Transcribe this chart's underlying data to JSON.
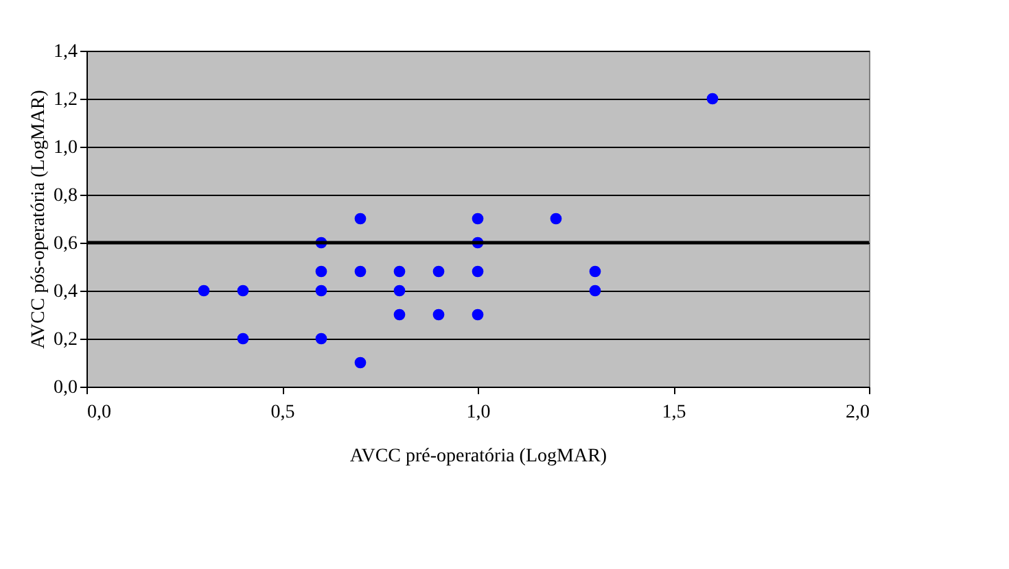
{
  "chart_data": {
    "type": "scatter",
    "xlabel": "AVCC pré-operatória (LogMAR)",
    "ylabel": "AVCC pós-operatória (LogMAR)",
    "x": [
      0.3,
      0.4,
      0.4,
      0.6,
      0.6,
      0.6,
      0.6,
      0.7,
      0.7,
      0.7,
      0.8,
      0.8,
      0.8,
      0.9,
      0.9,
      1.0,
      1.0,
      1.0,
      1.0,
      1.2,
      1.3,
      1.3,
      1.6
    ],
    "series": [
      {
        "color": "#0000ff",
        "values": [
          0.4,
          0.4,
          0.2,
          0.6,
          0.48,
          0.4,
          0.2,
          0.7,
          0.48,
          0.1,
          0.48,
          0.4,
          0.3,
          0.48,
          0.3,
          0.7,
          0.6,
          0.48,
          0.3,
          0.7,
          0.48,
          0.4,
          1.2
        ]
      }
    ],
    "xlim": [
      0,
      2
    ],
    "xticks": [
      {
        "value": 0,
        "label": "0,0"
      },
      {
        "value": 0.5,
        "label": "0,5"
      },
      {
        "value": 1,
        "label": "1,0"
      },
      {
        "value": 1.5,
        "label": "1,5"
      },
      {
        "value": 2,
        "label": "2,0"
      }
    ],
    "ylim": [
      0,
      1.4
    ],
    "yticks": [
      {
        "value": 0,
        "label": "0,0"
      },
      {
        "value": 0.2,
        "label": "0,2"
      },
      {
        "value": 0.4,
        "label": "0,4"
      },
      {
        "value": 0.6,
        "label": "0,6"
      },
      {
        "value": 0.8,
        "label": "0,8"
      },
      {
        "value": 1,
        "label": "1,0"
      },
      {
        "value": 1.2,
        "label": "1,2"
      },
      {
        "value": 1.4,
        "label": "1,4"
      }
    ],
    "grid": "y",
    "marker": "circle",
    "legend": false,
    "ref_lines": [
      {
        "axis": "y",
        "value": 0.6,
        "color": "#000000"
      }
    ]
  }
}
